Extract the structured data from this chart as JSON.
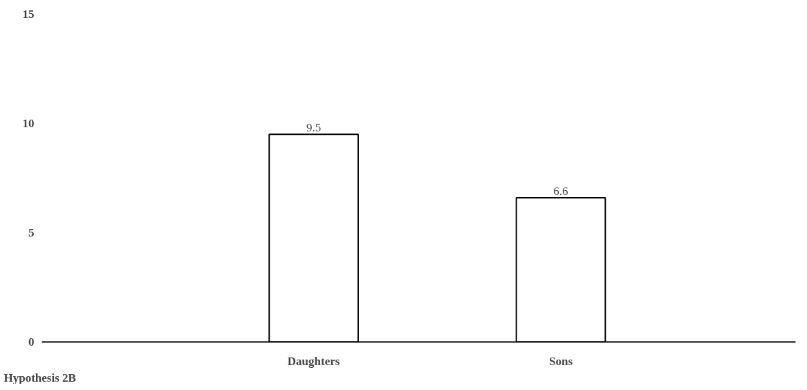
{
  "chart_data": {
    "type": "bar",
    "categories": [
      "Daughters",
      "Sons"
    ],
    "values": [
      9.5,
      6.6
    ],
    "color": "#ffffff",
    "ylim": [
      0,
      15
    ],
    "yticks": [
      0,
      5,
      10,
      15
    ],
    "data_labels": true,
    "grid": false,
    "annotations": [
      "Hypothesis 2B"
    ]
  }
}
